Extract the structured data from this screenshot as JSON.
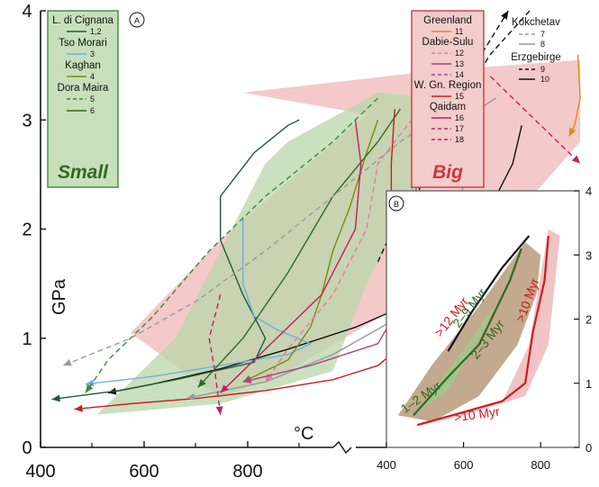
{
  "chart_data": [
    {
      "type": "line",
      "panel": "A",
      "xlabel": "°C",
      "ylabel": "GPa",
      "xlim": [
        400,
        900
      ],
      "ylim": [
        0,
        4
      ],
      "x_ticks": [
        400,
        600,
        800
      ],
      "y_ticks": [
        0,
        1,
        2,
        3,
        4
      ],
      "groups": [
        {
          "name": "Small",
          "color": "#2e6b1f",
          "fill": "#b9d6a8",
          "entries": [
            {
              "name": "L. di Cignana",
              "id": "1,2",
              "color": "#1f5a3a",
              "dash": "solid"
            },
            {
              "name": "Tso Morari",
              "id": "3",
              "color": "#6fb0e0",
              "dash": "solid"
            },
            {
              "name": "Kaghan",
              "id": "4",
              "color": "#7a8a10",
              "dash": "solid"
            },
            {
              "name": "Dora Maira",
              "id": "5",
              "color": "#3a8a3a",
              "dash": "dash"
            },
            {
              "name": "",
              "id": "6",
              "color": "#2e6b1f",
              "dash": "solid"
            }
          ]
        },
        {
          "name": "Big",
          "color": "#c83a3a",
          "fill": "#f2c0c0",
          "entries": [
            {
              "name": "Greenland",
              "id": "11",
              "color": "#e08a20",
              "dash": "solid"
            },
            {
              "name": "Dabie-Sulu",
              "id": "12",
              "color": "#e07aa8",
              "dash": "dash"
            },
            {
              "name": "",
              "id": "13",
              "color": "#b04080",
              "dash": "solid"
            },
            {
              "name": "",
              "id": "14",
              "color": "#b04080",
              "dash": "dash"
            },
            {
              "name": "W. Gn. Region",
              "id": "15",
              "color": "#c81e1e",
              "dash": "solid"
            },
            {
              "name": "Qaidam",
              "id": "16",
              "color": "#c02060",
              "dash": "solid"
            },
            {
              "name": "",
              "id": "17",
              "color": "#c02060",
              "dash": "dash"
            },
            {
              "name": "",
              "id": "18",
              "color": "#c02060",
              "dash": "dash"
            }
          ]
        },
        {
          "name": "Kokchetav",
          "color": "#888888",
          "entries": [
            {
              "name": "",
              "id": "7",
              "color": "#999999",
              "dash": "dash"
            },
            {
              "name": "",
              "id": "8",
              "color": "#999999",
              "dash": "solid"
            }
          ]
        },
        {
          "name": "Erzgebirge",
          "color": "#111111",
          "entries": [
            {
              "name": "",
              "id": "9",
              "color": "#111111",
              "dash": "dash"
            },
            {
              "name": "",
              "id": "10",
              "color": "#111111",
              "dash": "solid"
            }
          ]
        }
      ],
      "series": [
        {
          "id": "big-field",
          "kind": "area",
          "color": "#f2c0c0",
          "x": [
            580,
            750,
            880,
            880,
            820,
            720,
            620,
            560,
            480,
            560,
            690
          ],
          "y": [
            3.25,
            3.45,
            3.55,
            2.8,
            2.1,
            1.3,
            0.7,
            0.45,
            1.05,
            1.9,
            3.05
          ]
        },
        {
          "id": "small-field",
          "kind": "area",
          "color": "#b9d6a8",
          "x": [
            620,
            700,
            760,
            730,
            690,
            660,
            560,
            450,
            520,
            560,
            600
          ],
          "y": [
            2.8,
            3.25,
            3.2,
            2.3,
            1.5,
            0.7,
            0.4,
            0.3,
            1.0,
            1.8,
            2.6
          ]
        },
        {
          "id": "10",
          "kind": "line",
          "color": "#111111",
          "dash": "solid",
          "x": [
            828,
            820,
            800,
            780,
            760,
            720,
            680,
            620,
            560,
            500,
            460
          ],
          "y": [
            2.95,
            2.6,
            2.2,
            1.85,
            1.6,
            1.28,
            1.1,
            0.9,
            0.72,
            0.58,
            0.5
          ]
        },
        {
          "id": "9",
          "kind": "line",
          "color": "#111111",
          "dash": "dash",
          "x": [
            835,
            800,
            770,
            740,
            720
          ],
          "y": [
            4.0,
            3.6,
            3.1,
            2.5,
            1.6
          ]
        },
        {
          "id": "9b",
          "kind": "line",
          "color": "#111111",
          "dash": "dash",
          "x": [
            700,
            740,
            780,
            816
          ],
          "y": [
            1.7,
            2.6,
            3.4,
            4.0
          ]
        },
        {
          "id": "11",
          "kind": "line",
          "color": "#e08a20",
          "dash": "solid",
          "x": [
            878,
            880,
            875,
            870
          ],
          "y": [
            3.6,
            3.2,
            2.95,
            2.85
          ]
        },
        {
          "id": "15",
          "kind": "line",
          "color": "#c81e1e",
          "dash": "solid",
          "x": [
            715,
            712,
            712,
            712,
            700,
            660,
            600,
            540,
            480,
            430
          ],
          "y": [
            3.1,
            2.6,
            1.6,
            0.85,
            0.75,
            0.62,
            0.52,
            0.45,
            0.4,
            0.35
          ]
        },
        {
          "id": "1,2",
          "kind": "line",
          "color": "#1f5a3a",
          "dash": "solid",
          "x": [
            630,
            620,
            590,
            560,
            560,
            580,
            600,
            590,
            520,
            470,
            410
          ],
          "y": [
            3.0,
            2.95,
            2.7,
            2.3,
            1.9,
            1.4,
            1.0,
            0.78,
            0.62,
            0.52,
            0.44
          ]
        },
        {
          "id": "3",
          "kind": "line",
          "color": "#6fb0e0",
          "dash": "solid",
          "x": [
            580,
            580,
            590,
            610,
            640,
            620,
            560,
            500,
            440
          ],
          "y": [
            2.1,
            1.5,
            1.2,
            1.08,
            0.95,
            0.85,
            0.75,
            0.65,
            0.58
          ]
        },
        {
          "id": "4",
          "kind": "line",
          "color": "#7a8a10",
          "dash": "solid",
          "x": [
            700,
            690,
            675,
            660,
            650,
            640,
            620,
            580
          ],
          "y": [
            3.0,
            2.7,
            2.2,
            1.8,
            1.4,
            1.1,
            0.8,
            0.6
          ]
        },
        {
          "id": "5",
          "kind": "line",
          "color": "#3a8a3a",
          "dash": "dash",
          "x": [
            700,
            660,
            600,
            550,
            500,
            460,
            440
          ],
          "y": [
            3.2,
            2.8,
            2.3,
            1.8,
            1.2,
            0.8,
            0.5
          ]
        },
        {
          "id": "6",
          "kind": "line",
          "color": "#2e6b1f",
          "dash": "solid",
          "x": [
            720,
            700,
            660,
            620,
            580,
            540
          ],
          "y": [
            3.1,
            2.8,
            2.3,
            1.6,
            1.0,
            0.55
          ]
        },
        {
          "id": "7",
          "kind": "line",
          "color": "#999999",
          "dash": "dash",
          "x": [
            770,
            720,
            660,
            600,
            540,
            480,
            420
          ],
          "y": [
            3.15,
            2.8,
            2.3,
            1.8,
            1.35,
            1.0,
            0.75
          ]
        },
        {
          "id": "8",
          "kind": "line",
          "color": "#999999",
          "dash": "solid",
          "x": [
            805,
            790,
            780,
            770,
            750,
            720,
            660,
            600,
            530
          ],
          "y": [
            3.2,
            3.1,
            2.6,
            2.1,
            1.6,
            1.2,
            0.85,
            0.6,
            0.45
          ]
        },
        {
          "id": "12",
          "kind": "line",
          "color": "#e07aa8",
          "dash": "dash",
          "x": [
            760,
            730,
            700,
            690,
            660,
            620,
            600
          ],
          "y": [
            3.3,
            3.0,
            2.6,
            2.0,
            1.4,
            0.9,
            0.6
          ]
        },
        {
          "id": "13",
          "kind": "line",
          "color": "#b04080",
          "dash": "solid",
          "x": [
            740,
            735,
            730,
            720,
            700,
            640,
            580
          ],
          "y": [
            3.0,
            2.5,
            1.8,
            1.3,
            0.95,
            0.75,
            0.6
          ]
        },
        {
          "id": "16",
          "kind": "line",
          "color": "#c02060",
          "dash": "solid",
          "x": [
            680,
            685,
            680,
            650,
            600,
            560
          ],
          "y": [
            3.0,
            2.6,
            2.0,
            1.4,
            0.9,
            0.5
          ]
        },
        {
          "id": "17",
          "kind": "line",
          "color": "#c02060",
          "dash": "dash",
          "x": [
            800,
            820,
            840,
            860,
            880
          ],
          "y": [
            3.4,
            3.2,
            3.0,
            2.8,
            2.6
          ]
        },
        {
          "id": "18",
          "kind": "line",
          "color": "#c02060",
          "dash": "dash",
          "x": [
            560,
            550,
            555,
            560
          ],
          "y": [
            1.4,
            1.0,
            0.7,
            0.3
          ]
        }
      ]
    },
    {
      "type": "line",
      "panel": "B",
      "xlim": [
        400,
        900
      ],
      "ylim": [
        0,
        4
      ],
      "x_ticks": [
        400,
        600,
        800
      ],
      "y_ticks": [
        0,
        1,
        2,
        3,
        4
      ],
      "annotations": [
        {
          "text": ">12 Myr",
          "color": "#c81e1e"
        },
        {
          "text": "2–9 Myr",
          "color": "#2e6b1f"
        },
        {
          "text": "2–3 Myr",
          "color": "#2e6b1f"
        },
        {
          "text": "1–2 Myr",
          "color": "#2e6b1f"
        },
        {
          "text": ">10 Myr",
          "color": "#c81e1e"
        },
        {
          "text": ">10 Myr",
          "color": "#c81e1e"
        }
      ],
      "bands": [
        {
          "name": "brown",
          "color": "#b89a7a",
          "x": [
            430,
            520,
            640,
            760,
            800,
            790,
            740,
            640,
            520
          ],
          "y": [
            0.5,
            1.3,
            2.2,
            3.2,
            3.0,
            2.4,
            1.6,
            0.8,
            0.4
          ]
        },
        {
          "name": "green",
          "color": "#9fc98f",
          "x": [
            470,
            560,
            680,
            740,
            720,
            660,
            560
          ],
          "y": [
            0.5,
            1.2,
            2.2,
            3.0,
            2.8,
            1.9,
            0.9
          ]
        },
        {
          "name": "pink",
          "color": "#f0b8b8",
          "x": [
            460,
            600,
            760,
            820,
            850,
            820,
            770,
            700
          ],
          "y": [
            0.3,
            0.5,
            0.8,
            1.6,
            3.3,
            3.4,
            1.6,
            0.7
          ]
        }
      ],
      "paths": [
        {
          "name": "black-path",
          "color": "#111111",
          "x": [
            560,
            620,
            700,
            770
          ],
          "y": [
            1.5,
            2.1,
            2.8,
            3.3
          ]
        },
        {
          "name": "green-path",
          "color": "#2e6b1f",
          "x": [
            470,
            560,
            640,
            720,
            750
          ],
          "y": [
            0.5,
            1.1,
            1.6,
            2.6,
            3.1
          ]
        },
        {
          "name": "red-path",
          "color": "#c81e1e",
          "x": [
            820,
            810,
            780,
            760,
            700,
            600,
            480
          ],
          "y": [
            3.3,
            2.6,
            1.8,
            1.0,
            0.72,
            0.55,
            0.35
          ]
        }
      ]
    }
  ],
  "labels": {
    "panel_a": "A",
    "panel_b": "B",
    "group_small": "Small",
    "group_big": "Big"
  }
}
